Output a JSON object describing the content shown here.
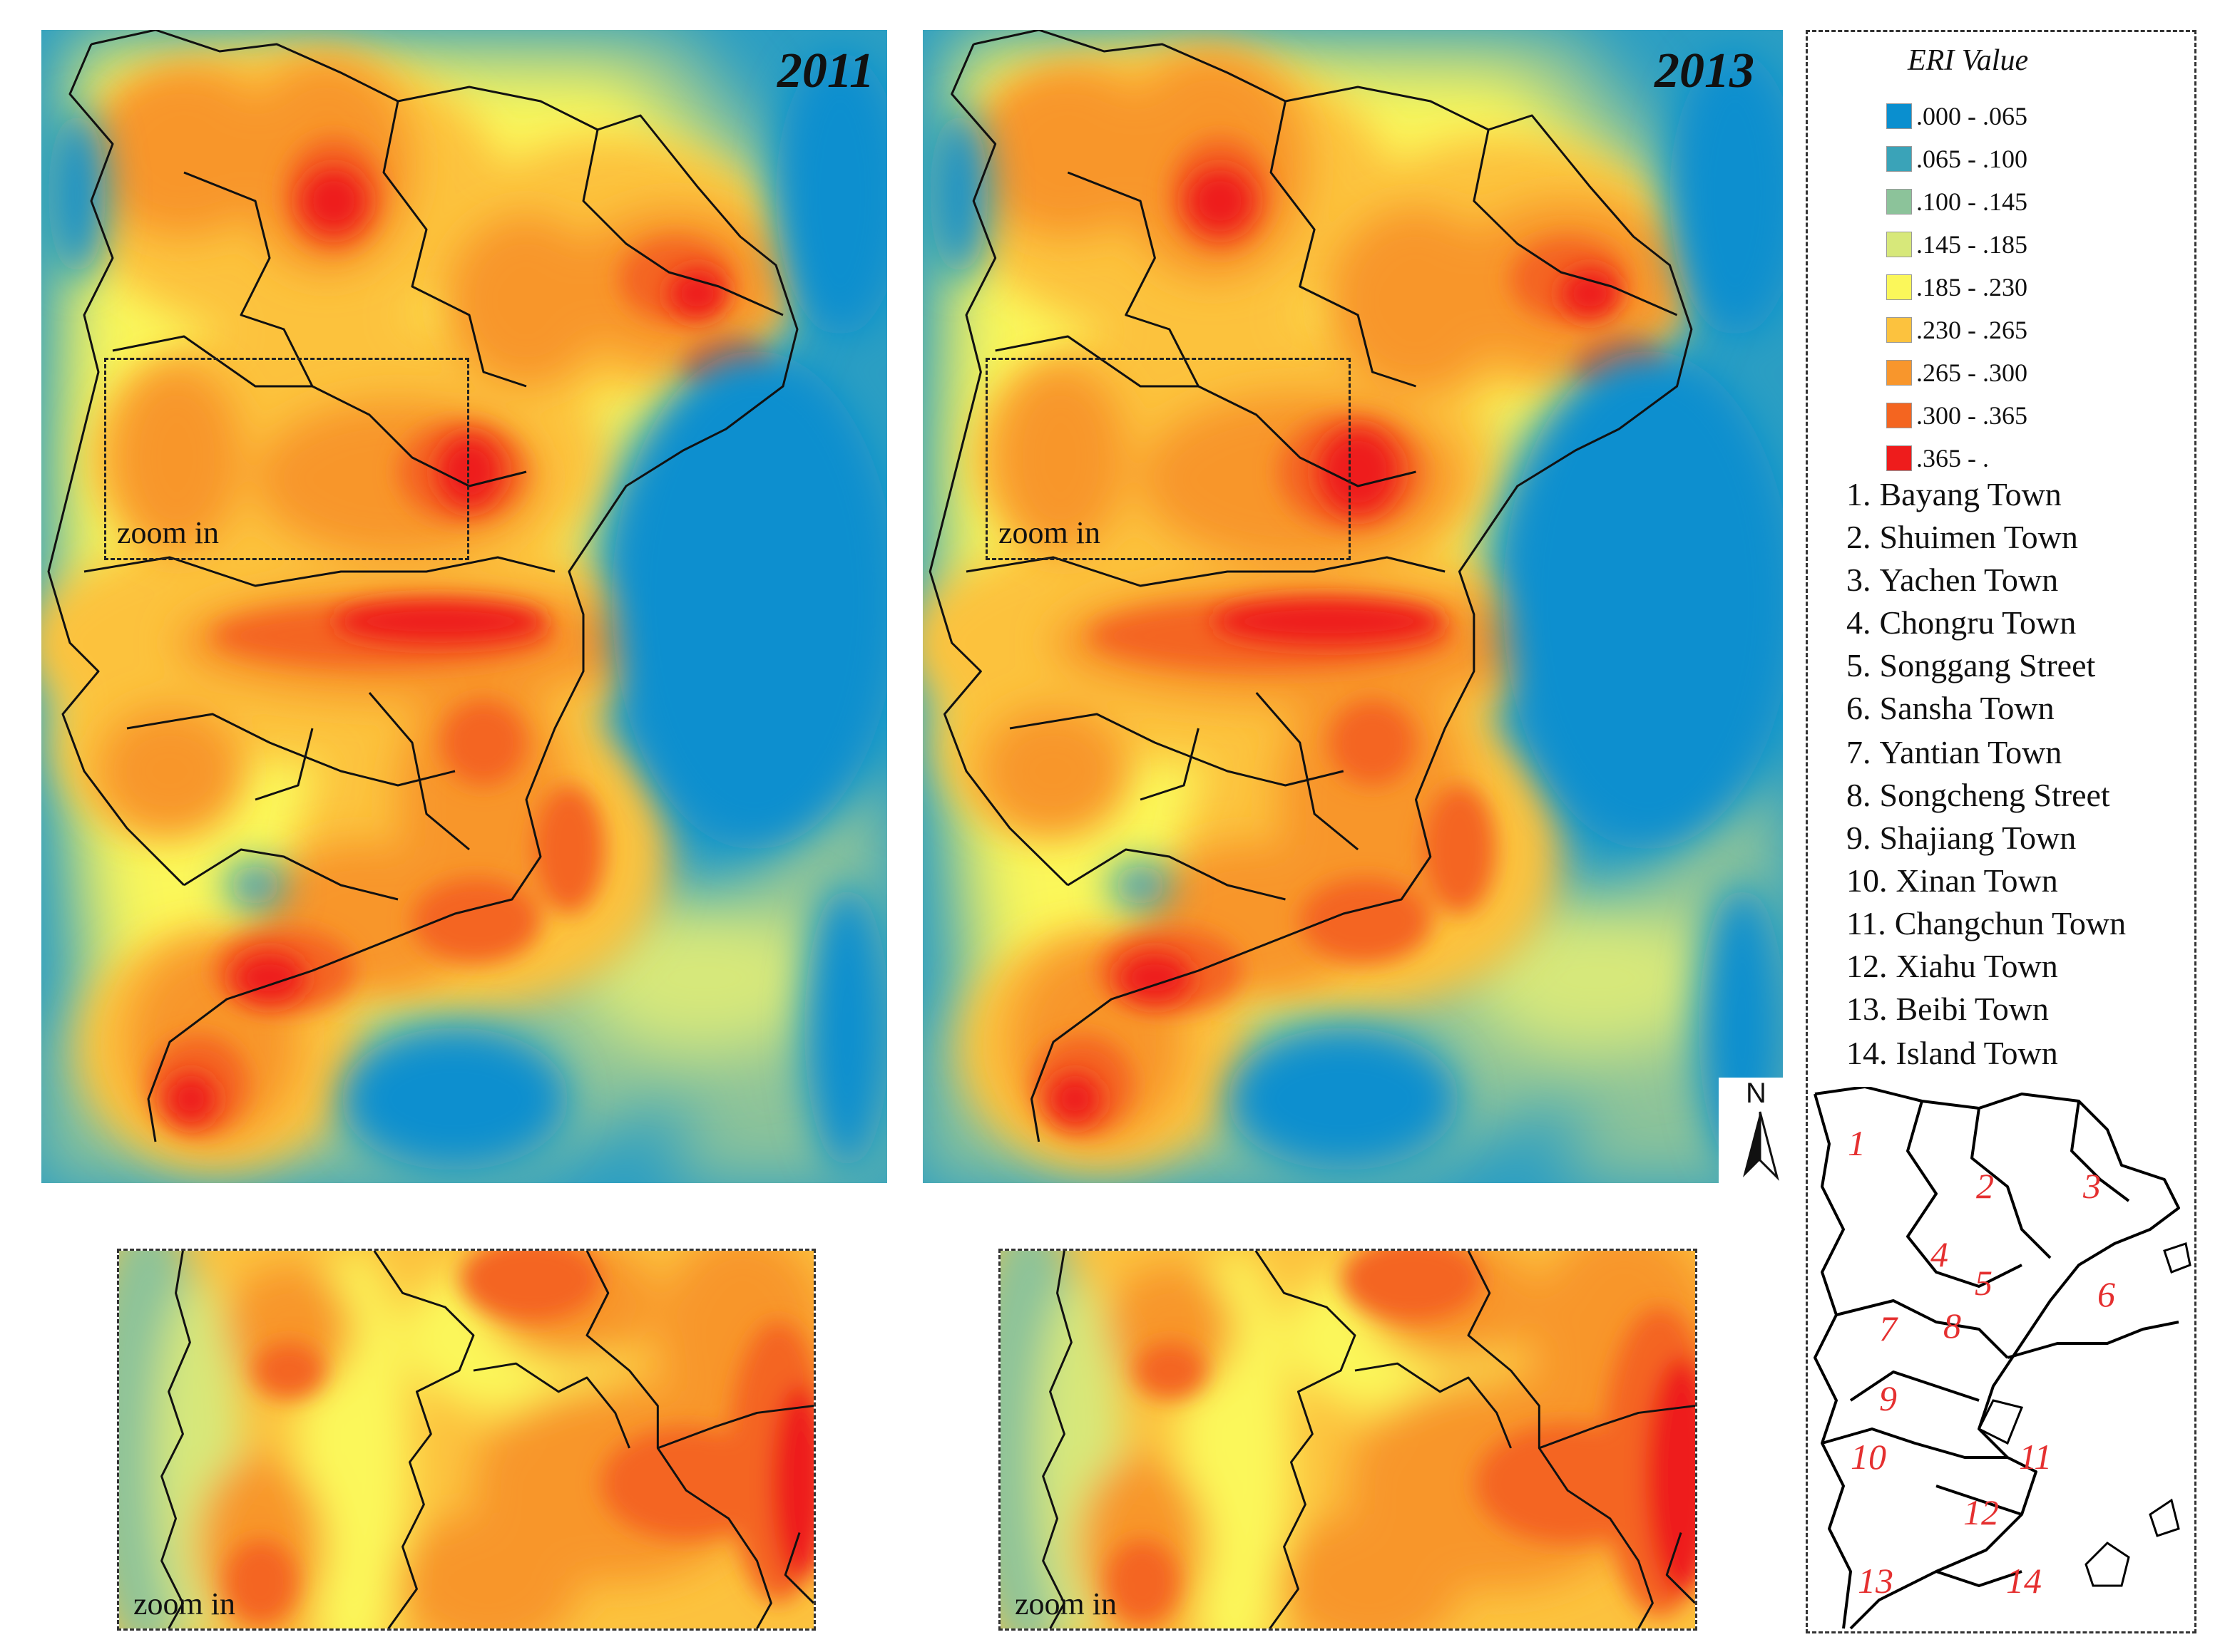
{
  "maps": [
    {
      "year": "2011",
      "zoom_label": "zoom in"
    },
    {
      "year": "2013",
      "zoom_label": "zoom in"
    }
  ],
  "zoom_panels": [
    {
      "label": "zoom in"
    },
    {
      "label": "zoom in"
    }
  ],
  "legend": {
    "title": "ERI Value",
    "classes": [
      {
        "range": ".000 - .065",
        "color": "#0a8fcf"
      },
      {
        "range": ".065 - .100",
        "color": "#3aa3b8"
      },
      {
        "range": ".100 - .145",
        "color": "#8cc39a"
      },
      {
        "range": ".145 - .185",
        "color": "#d7e87a"
      },
      {
        "range": ".185 - .230",
        "color": "#fbf75a"
      },
      {
        "range": ".230 - .265",
        "color": "#fcc23e"
      },
      {
        "range": ".265 - .300",
        "color": "#f8962c"
      },
      {
        "range": ".300 - .365",
        "color": "#f46520"
      },
      {
        "range": ".365 - .",
        "color": "#ee1c1c"
      }
    ]
  },
  "towns": [
    {
      "num": "1.",
      "name": "Bayang Town"
    },
    {
      "num": "2.",
      "name": "Shuimen Town"
    },
    {
      "num": "3.",
      "name": "Yachen Town"
    },
    {
      "num": "4.",
      "name": "Chongru Town"
    },
    {
      "num": "5.",
      "name": "Songgang Street"
    },
    {
      "num": "6.",
      "name": "Sansha Town"
    },
    {
      "num": "7.",
      "name": "Yantian Town"
    },
    {
      "num": "8.",
      "name": "Songcheng Street"
    },
    {
      "num": "9.",
      "name": "Shajiang Town"
    },
    {
      "num": "10.",
      "name": "Xinan Town"
    },
    {
      "num": "11.",
      "name": "Changchun Town"
    },
    {
      "num": "12.",
      "name": "Xiahu Town"
    },
    {
      "num": "13.",
      "name": "Beibi Town"
    },
    {
      "num": "14.",
      "name": "Island Town"
    }
  ],
  "inset_labels": [
    "1",
    "2",
    "3",
    "4",
    "5",
    "6",
    "7",
    "8",
    "9",
    "10",
    "11",
    "12",
    "13",
    "14"
  ],
  "north_label": "N"
}
